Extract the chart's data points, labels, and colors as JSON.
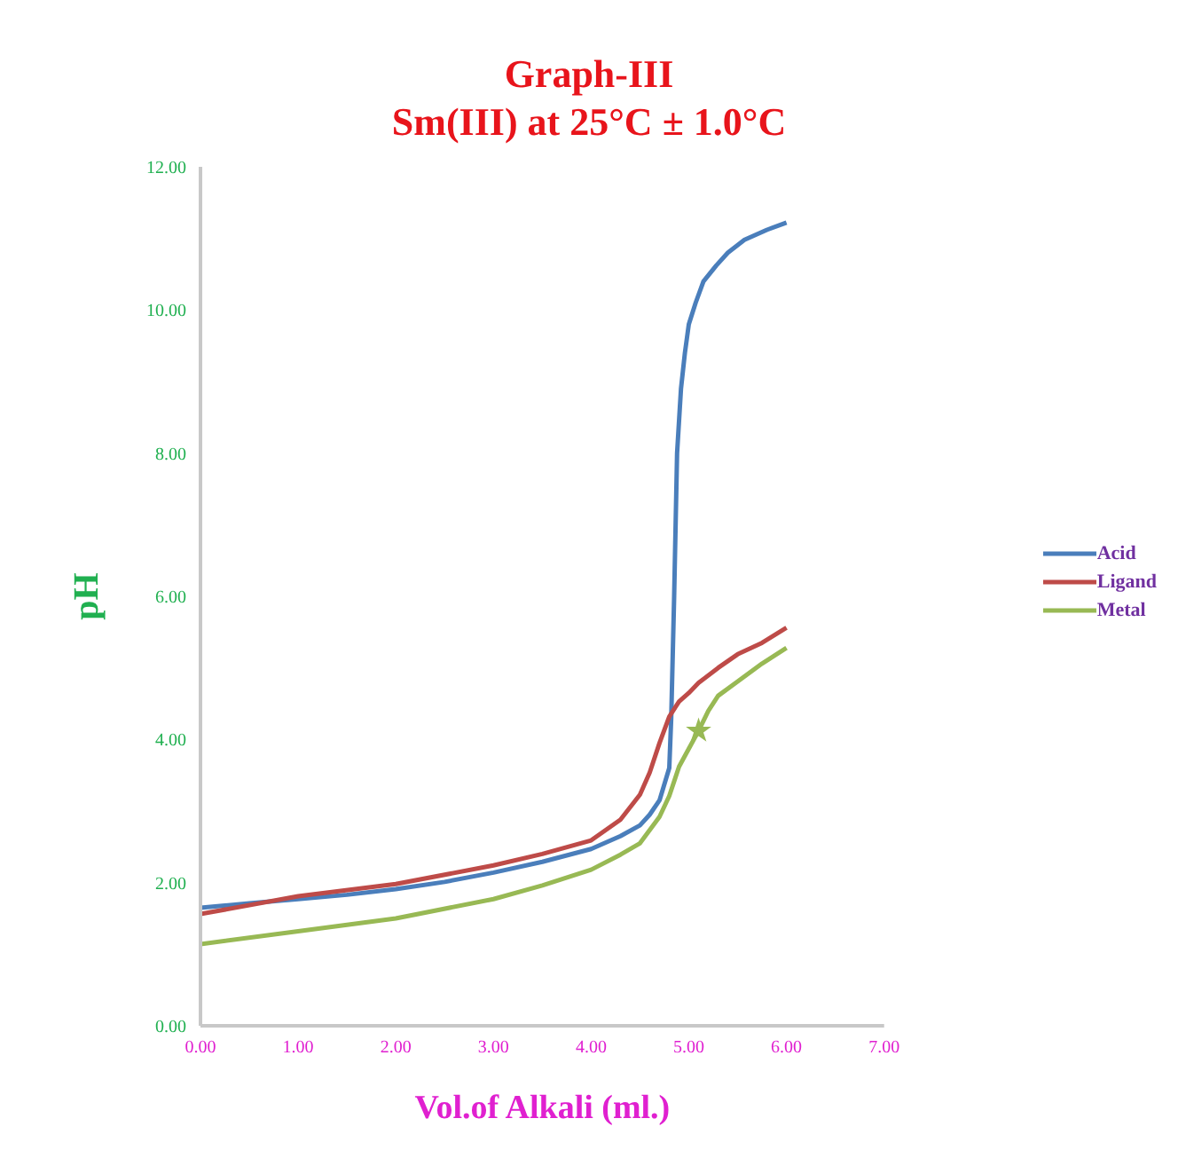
{
  "chart_data": {
    "type": "line",
    "title": "Graph-III\nSm(III) at 25°C ± 1.0°C",
    "xlabel": "Vol.of Alkali (ml.)",
    "ylabel": "pH",
    "xlim": [
      0,
      7
    ],
    "xticks": [
      {
        "value": 0,
        "label": "0.00"
      },
      {
        "value": 1,
        "label": "1.00"
      },
      {
        "value": 2,
        "label": "2.00"
      },
      {
        "value": 3,
        "label": "3.00"
      },
      {
        "value": 4,
        "label": "4.00"
      },
      {
        "value": 5,
        "label": "5.00"
      },
      {
        "value": 6,
        "label": "6.00"
      },
      {
        "value": 7,
        "label": "7.00"
      }
    ],
    "ylim": [
      0,
      12
    ],
    "yticks": [
      {
        "value": 0,
        "label": "0.00"
      },
      {
        "value": 2,
        "label": "2.00"
      },
      {
        "value": 4,
        "label": "4.00"
      },
      {
        "value": 6,
        "label": "6.00"
      },
      {
        "value": 8,
        "label": "8.00"
      },
      {
        "value": 10,
        "label": "10.00"
      },
      {
        "value": 12,
        "label": "12.00"
      }
    ],
    "grid": false,
    "legend": "right",
    "marker": "none",
    "line_style": "solid",
    "series": [
      {
        "name": "Acid",
        "color": "#4a7ebb",
        "x": [
          0,
          0.5,
          1,
          1.5,
          2,
          2.5,
          3,
          3.5,
          4,
          4.3,
          4.5,
          4.6,
          4.7,
          4.8,
          4.82,
          4.85,
          4.88,
          4.92,
          4.96,
          5.0,
          5.07,
          5.15,
          5.28,
          5.4,
          5.57,
          5.8,
          6
        ],
        "values": [
          1.65,
          1.71,
          1.77,
          1.83,
          1.91,
          2.01,
          2.14,
          2.29,
          2.47,
          2.65,
          2.8,
          2.95,
          3.15,
          3.6,
          4.3,
          6.0,
          8.0,
          8.9,
          9.4,
          9.8,
          10.1,
          10.4,
          10.62,
          10.8,
          10.98,
          11.12,
          11.22
        ]
      },
      {
        "name": "Ligand",
        "color": "#be4b48",
        "x": [
          0,
          1,
          2,
          3,
          3.5,
          4,
          4.3,
          4.5,
          4.6,
          4.7,
          4.8,
          4.9,
          5.0,
          5.1,
          5.3,
          5.5,
          5.75,
          6
        ],
        "values": [
          1.56,
          1.81,
          1.98,
          2.24,
          2.4,
          2.59,
          2.88,
          3.23,
          3.54,
          3.95,
          4.32,
          4.53,
          4.65,
          4.79,
          5.0,
          5.19,
          5.35,
          5.56
        ]
      },
      {
        "name": "Metal",
        "color": "#98b954",
        "x": [
          0,
          1,
          2,
          3,
          3.5,
          4,
          4.3,
          4.5,
          4.7,
          4.8,
          4.9,
          5.0,
          5.1,
          5.2,
          5.3,
          5.5,
          5.75,
          6
        ],
        "values": [
          1.14,
          1.32,
          1.5,
          1.77,
          1.96,
          2.18,
          2.39,
          2.55,
          2.92,
          3.21,
          3.62,
          3.87,
          4.12,
          4.4,
          4.61,
          4.81,
          5.06,
          5.28
        ]
      },
      {
        "type": "scatter",
        "marker": "star",
        "color": "#98b954",
        "x": [
          5.1
        ],
        "values": [
          4.12
        ]
      }
    ]
  }
}
